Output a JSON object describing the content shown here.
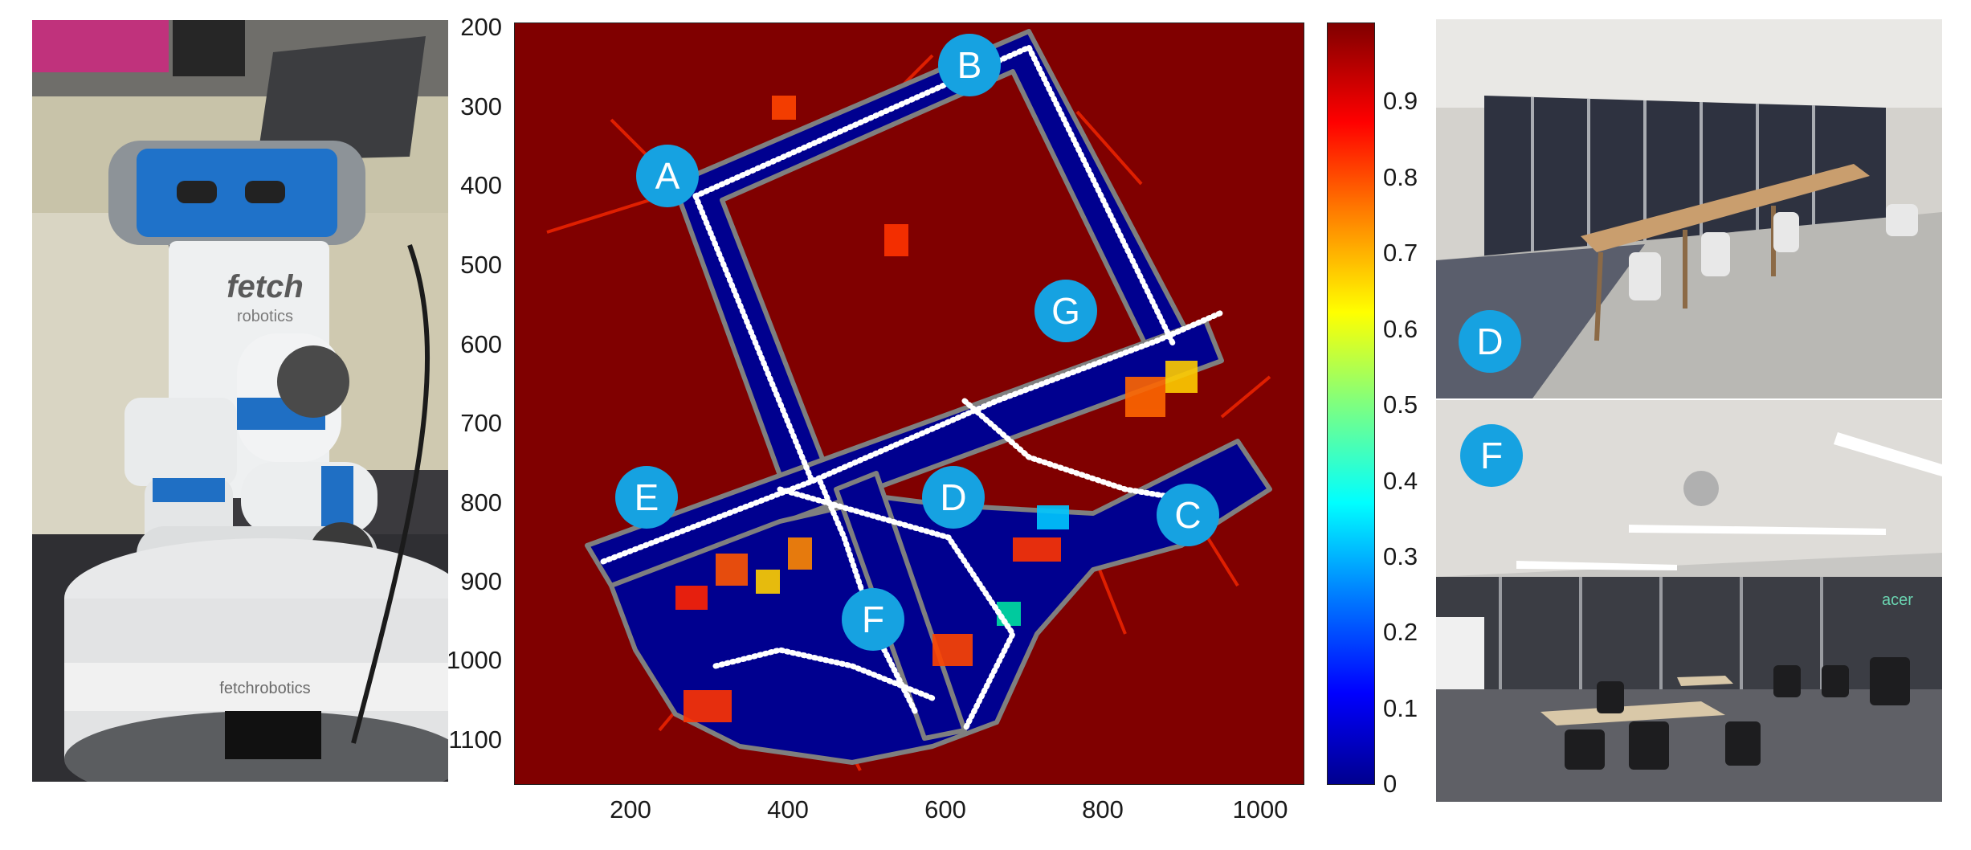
{
  "robot_photo": {
    "brand_top": "fetch",
    "brand_top_sub": "robotics",
    "brand_base": "fetchrobotics"
  },
  "map": {
    "y_ticks": [
      "200",
      "300",
      "400",
      "500",
      "600",
      "700",
      "800",
      "900",
      "1000",
      "1100"
    ],
    "x_ticks": [
      "200",
      "400",
      "600",
      "800",
      "1000"
    ],
    "location_labels": [
      "A",
      "B",
      "C",
      "D",
      "E",
      "F",
      "G"
    ]
  },
  "colorbar": {
    "ticks": [
      "0",
      "0.1",
      "0.2",
      "0.3",
      "0.4",
      "0.5",
      "0.6",
      "0.7",
      "0.8",
      "0.9"
    ],
    "colors": [
      "#00008f",
      "#0000ff",
      "#007fff",
      "#00ffff",
      "#7fff7f",
      "#ffff00",
      "#ff7f00",
      "#ff0000",
      "#800000"
    ]
  },
  "photos": {
    "top_label": "D",
    "bottom_label": "F",
    "sign_text": "acer"
  },
  "colors": {
    "badge": "#16a2e1",
    "map_background": "#800000",
    "map_free_space": "#00008f",
    "path": "#ffffff"
  }
}
